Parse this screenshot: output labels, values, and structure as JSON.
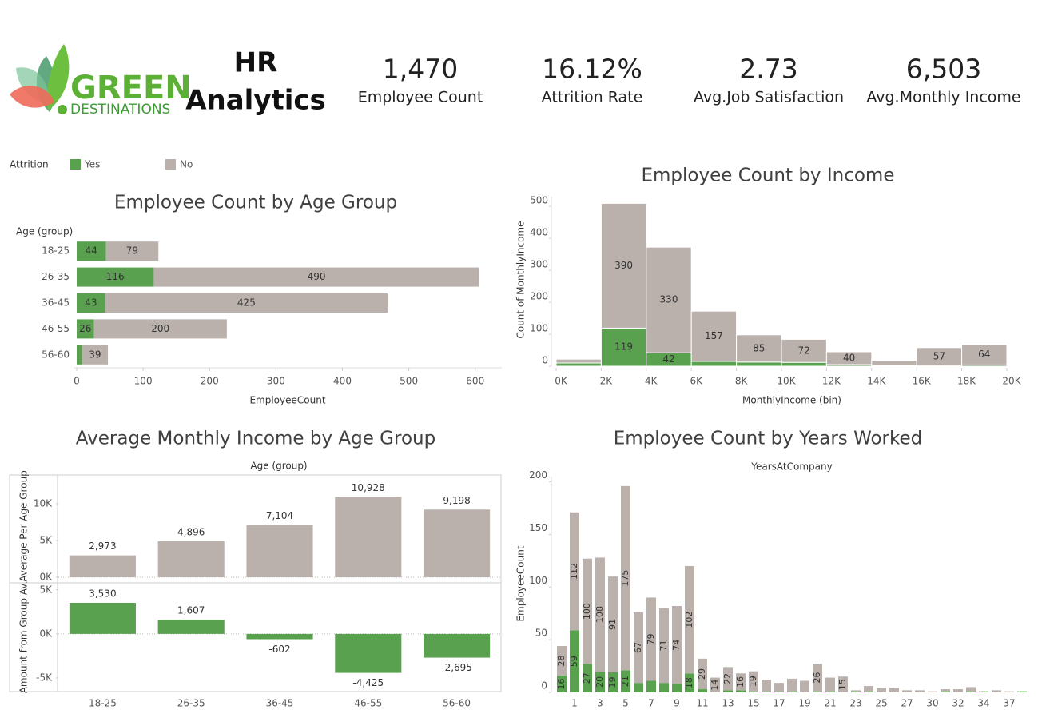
{
  "header": {
    "logo": [
      "GREEN",
      "DESTINATIONS"
    ],
    "title": [
      "HR",
      "Analytics"
    ],
    "kpis": [
      {
        "value": "1,470",
        "label": "Employee Count"
      },
      {
        "value": "16.12%",
        "label": "Attrition Rate"
      },
      {
        "value": "2.73",
        "label": "Avg.Job Satisfaction"
      },
      {
        "value": "6,503",
        "label": "Avg.Monthly Income"
      }
    ]
  },
  "chart_data": [
    {
      "type": "bar",
      "horizontal": true,
      "stacked": true,
      "legend_title": "Attrition",
      "title": "Employee Count by Age Group",
      "y_label": "Age (group)",
      "x_label": "EmployeeCount",
      "categories": [
        "18-25",
        "26-35",
        "36-45",
        "46-55",
        "56-60"
      ],
      "series": [
        {
          "name": "Yes",
          "color": "#59a14f",
          "values": [
            44,
            116,
            43,
            26,
            8
          ]
        },
        {
          "name": "No",
          "color": "#bab0ac",
          "values": [
            79,
            490,
            425,
            200,
            39
          ]
        }
      ],
      "xlim": [
        0,
        640
      ],
      "xticks": [
        0,
        100,
        200,
        300,
        400,
        500,
        600
      ],
      "grid": false
    },
    {
      "type": "histogram",
      "stacked": true,
      "title": "Employee Count by Income",
      "x_label": "MonthlyIncome (bin)",
      "y_label": "Count of MonthlyIncome",
      "bins": [
        0,
        2000,
        4000,
        6000,
        8000,
        10000,
        12000,
        14000,
        16000,
        18000,
        20000
      ],
      "series": [
        {
          "name": "Yes",
          "color": "#59a14f",
          "values": [
            10,
            119,
            42,
            15,
            13,
            12,
            5,
            2,
            1,
            4
          ]
        },
        {
          "name": "No",
          "color": "#bab0ac",
          "values": [
            12,
            390,
            330,
            157,
            85,
            72,
            40,
            16,
            57,
            64
          ]
        }
      ],
      "xlim": [
        0,
        20000
      ],
      "xticks": [
        {
          "value": 0,
          "label": "0K"
        },
        {
          "value": 2000,
          "label": "2K"
        },
        {
          "value": 4000,
          "label": "4K"
        },
        {
          "value": 6000,
          "label": "6K"
        },
        {
          "value": 8000,
          "label": "8K"
        },
        {
          "value": 10000,
          "label": "10K"
        },
        {
          "value": 12000,
          "label": "12K"
        },
        {
          "value": 14000,
          "label": "14K"
        },
        {
          "value": 16000,
          "label": "16K"
        },
        {
          "value": 18000,
          "label": "18K"
        },
        {
          "value": 20000,
          "label": "20K"
        }
      ],
      "ylim": [
        0,
        530
      ],
      "yticks": [
        0,
        100,
        200,
        300,
        400,
        500
      ],
      "grid": false
    },
    {
      "type": "bar",
      "panels_chart": true,
      "title": "Average Monthly Income by Age Group",
      "x_label": "Age (group)",
      "categories": [
        "18-25",
        "26-35",
        "36-45",
        "46-55",
        "56-60"
      ],
      "panels": [
        {
          "y_label": "Average Per Age Group",
          "color": "#bab0ac",
          "values": [
            2973,
            4896,
            7104,
            10928,
            9198
          ],
          "value_labels": [
            "2,973",
            "4,896",
            "7,104",
            "10,928",
            "9,198"
          ],
          "ylim": [
            0,
            13900
          ],
          "yticks": [
            {
              "value": 0,
              "label": "0K"
            },
            {
              "value": 5000,
              "label": "5K"
            },
            {
              "value": 10000,
              "label": "10K"
            }
          ]
        },
        {
          "y_label": "Amount from Group Av.",
          "color": "#59a14f",
          "values": [
            3530,
            1607,
            -602,
            -4425,
            -2695
          ],
          "value_labels": [
            "3,530",
            "1,607",
            "-602",
            "-4,425",
            "-2,695"
          ],
          "ylim": [
            -6550,
            5800
          ],
          "yticks": [
            {
              "value": -5000,
              "label": "-5K"
            },
            {
              "value": 0,
              "label": "0K"
            },
            {
              "value": 5000,
              "label": "5K"
            }
          ]
        }
      ]
    },
    {
      "type": "bar",
      "stacked": true,
      "title": "Employee Count by Years Worked",
      "x_label": "YearsAtCompany",
      "y_label": "EmployeeCount",
      "categories": [
        null,
        1,
        null,
        3,
        null,
        5,
        null,
        7,
        null,
        9,
        null,
        11,
        null,
        13,
        null,
        15,
        null,
        17,
        null,
        19,
        null,
        21,
        null,
        23,
        null,
        25,
        null,
        27,
        null,
        30,
        null,
        32,
        null,
        34,
        null,
        37,
        null
      ],
      "series": [
        {
          "name": "Yes",
          "color": "#59a14f",
          "values": [
            16,
            59,
            27,
            20,
            19,
            21,
            9,
            11,
            9,
            8,
            18,
            3,
            0,
            2,
            2,
            1,
            1,
            1,
            1,
            0,
            1,
            1,
            0,
            1,
            1,
            0,
            0,
            0,
            0,
            0,
            1,
            0,
            1,
            1,
            0,
            0,
            1
          ]
        },
        {
          "name": "No",
          "color": "#bab0ac",
          "values": [
            28,
            112,
            100,
            108,
            91,
            175,
            67,
            79,
            71,
            74,
            102,
            29,
            14,
            22,
            16,
            19,
            11,
            8,
            12,
            11,
            26,
            13,
            15,
            1,
            5,
            4,
            4,
            2,
            2,
            1,
            2,
            3,
            4,
            0,
            2,
            1,
            0
          ]
        }
      ],
      "ylim": [
        0,
        205
      ],
      "yticks": [
        0,
        50,
        100,
        150,
        200
      ],
      "grid": false
    }
  ]
}
